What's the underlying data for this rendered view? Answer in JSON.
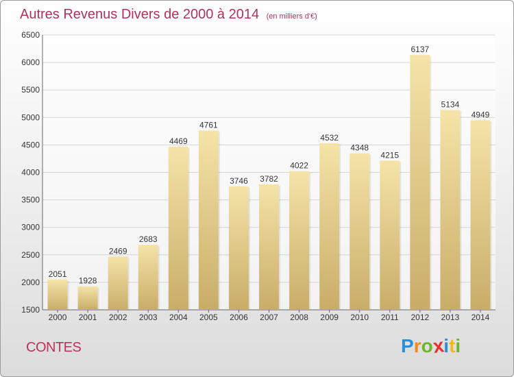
{
  "chart_data": {
    "type": "bar",
    "title": "Autres Revenus Divers de 2000 à 2014",
    "subtitle": "(en milliers d'€)",
    "categories": [
      "2000",
      "2001",
      "2002",
      "2003",
      "2004",
      "2005",
      "2006",
      "2007",
      "2008",
      "2009",
      "2010",
      "2011",
      "2012",
      "2013",
      "2014"
    ],
    "values": [
      2051,
      1928,
      2469,
      2683,
      4469,
      4761,
      3746,
      3782,
      4022,
      4532,
      4348,
      4215,
      6137,
      5134,
      4949
    ],
    "ylim": [
      1500,
      6500
    ],
    "yticks": [
      1500,
      2000,
      2500,
      3000,
      3500,
      4000,
      4500,
      5000,
      5500,
      6000,
      6500
    ],
    "grid": true,
    "colors": {
      "bar_light": "#f5e3a8",
      "bar_dark": "#c8ad68",
      "title": "#b0325a",
      "grid": "#d4d4d4"
    }
  },
  "commune": "CONTES",
  "logo": {
    "letters": [
      "P",
      "r",
      "o",
      "x",
      "i",
      "t",
      "i"
    ],
    "colors": [
      "#2a8fd4",
      "#f08a1c",
      "#6fb52c",
      "#e8312a",
      "#2a8fd4",
      "#f0b81c",
      "#6fb52c"
    ]
  }
}
